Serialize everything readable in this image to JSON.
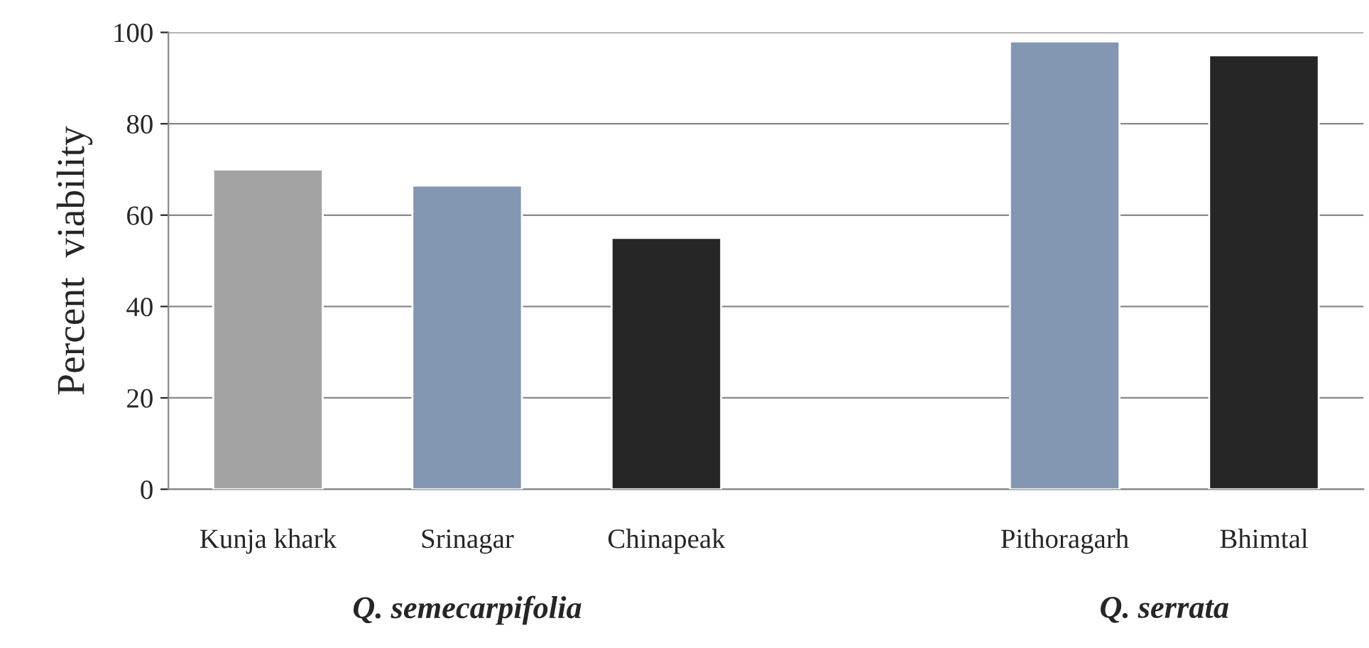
{
  "chart_data": {
    "type": "bar",
    "ylabel": "Percent  viability",
    "categories": [
      "Kunja khark",
      "Srinagar",
      "Chinapeak",
      null,
      "Pithoragarh",
      "Bhimtal"
    ],
    "values": [
      70,
      66.5,
      55,
      null,
      98,
      95
    ],
    "colors": [
      "#a3a3a3",
      "#8397b2",
      "#262626",
      null,
      "#8397b2",
      "#262626"
    ],
    "ylim": [
      0,
      100
    ],
    "yticks": [
      0,
      20,
      40,
      60,
      80,
      100
    ],
    "grid": "y",
    "legend": false,
    "annotations": [
      "Q. semecarpifolia",
      "Q. serrata"
    ]
  }
}
